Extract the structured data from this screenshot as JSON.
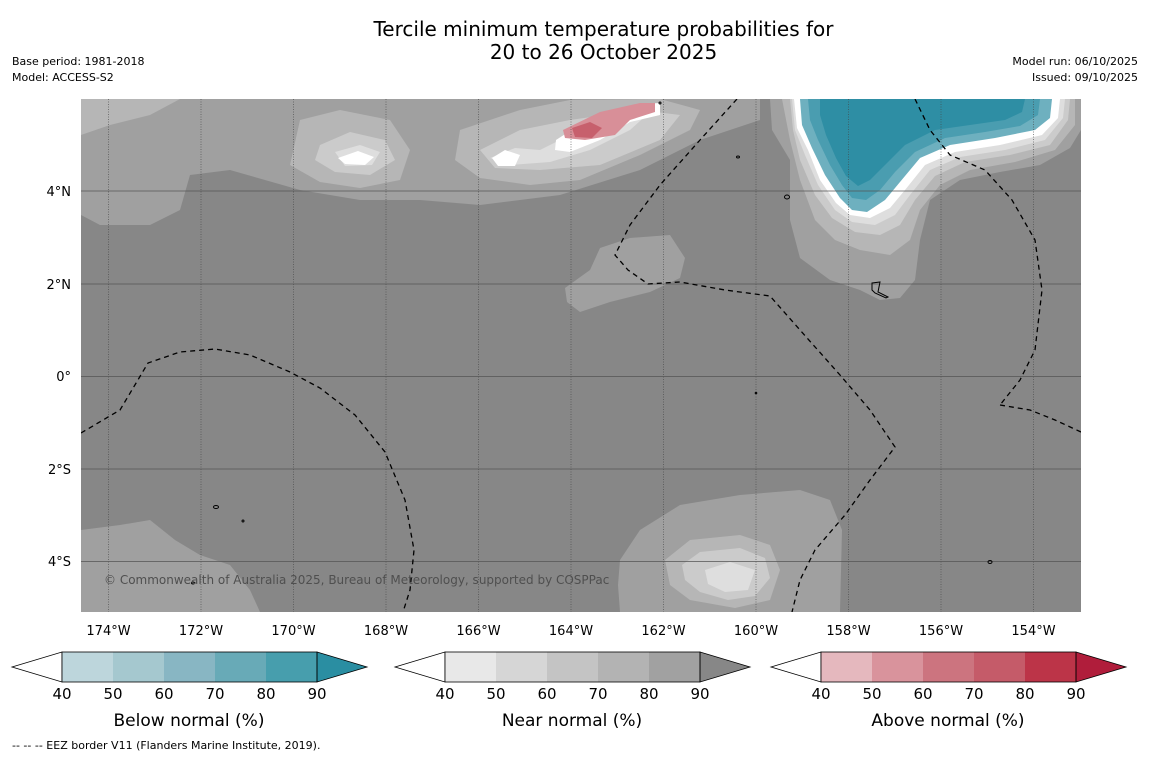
{
  "header": {
    "title_line1": "Tercile minimum temperature probabilities for",
    "title_line2": "20 to 26 October 2025",
    "base_period": "Base period: 1981-2018",
    "model": "Model: ACCESS-S2",
    "model_run": "Model run: 06/10/2025",
    "issued": "Issued: 09/10/2025"
  },
  "map": {
    "lon_labels": [
      "174°W",
      "172°W",
      "170°W",
      "168°W",
      "166°W",
      "164°W",
      "162°W",
      "160°W",
      "158°W",
      "156°W",
      "154°W"
    ],
    "lat_labels": [
      "4°N",
      "2°N",
      "0°",
      "2°S",
      "4°S"
    ],
    "copyright": "© Commonwealth of Australia 2025, Bureau of Meteorology, supported by COSPPac",
    "colors": {
      "background": "#878787",
      "near_50": "#a0a0a0",
      "near_60": "#b6b6b6",
      "near_70": "#cbcbcb",
      "near_80": "#dedede",
      "above_50": "#d88f98",
      "above_60": "#c7606d",
      "below_60": "#6eb0bf",
      "below_70": "#4a9db0",
      "below_80": "#2e8ea4"
    }
  },
  "colorbars": [
    {
      "title": "Below normal (%)",
      "ticks": [
        "40",
        "50",
        "60",
        "70",
        "80",
        "90"
      ],
      "colors": [
        "#ffffff",
        "#bdd6dc",
        "#a5c8cf",
        "#88b6c3",
        "#68aab7",
        "#479ead",
        "#2a8ea2"
      ]
    },
    {
      "title": "Near normal (%)",
      "ticks": [
        "40",
        "50",
        "60",
        "70",
        "80",
        "90"
      ],
      "colors": [
        "#ffffff",
        "#e8e8e8",
        "#d6d6d6",
        "#c4c4c4",
        "#b3b3b3",
        "#a1a1a1",
        "#878787"
      ]
    },
    {
      "title": "Above normal (%)",
      "ticks": [
        "40",
        "50",
        "60",
        "70",
        "80",
        "90"
      ],
      "colors": [
        "#ffffff",
        "#e5b8be",
        "#d9939c",
        "#cc747f",
        "#c55b69",
        "#bc3448",
        "#b01d3b"
      ]
    }
  ],
  "footnote": "--  --  -- EEZ border V11 (Flanders Marine Institute, 2019)."
}
